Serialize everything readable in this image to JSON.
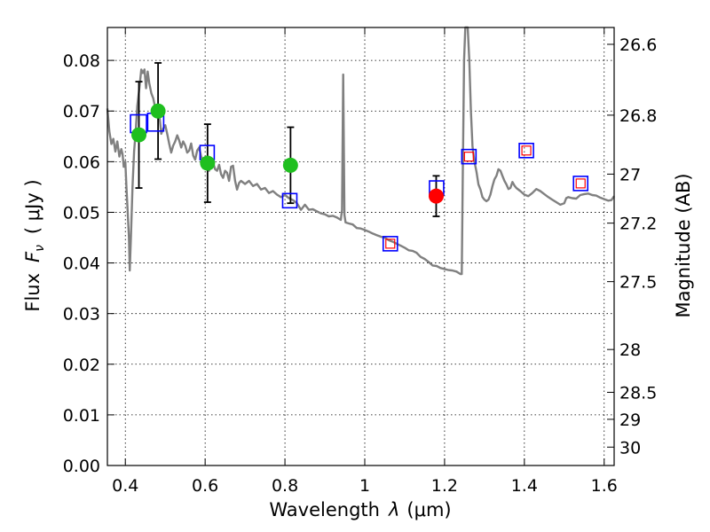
{
  "chart_data": {
    "type": "scatter",
    "xlabel_main": "Wavelength",
    "xlabel_symbol": "λ",
    "xlabel_unit": "(μm)",
    "ylabel_main": "Flux",
    "ylabel_symbol": "F",
    "ylabel_subscript": "ν",
    "ylabel_unit": "( μJy )",
    "y2label": "Magnitude (AB)",
    "xlim": [
      0.355,
      1.625
    ],
    "ylim": [
      0.0,
      0.0865
    ],
    "xticks": [
      0.4,
      0.6,
      0.8,
      1.0,
      1.2,
      1.4,
      1.6
    ],
    "xtick_labels": [
      "0.4",
      "0.6",
      "0.8",
      "1",
      "1.2",
      "1.4",
      "1.6"
    ],
    "yticks": [
      0.0,
      0.01,
      0.02,
      0.03,
      0.04,
      0.05,
      0.06,
      0.07,
      0.08
    ],
    "ytick_labels": [
      "0.00",
      "0.01",
      "0.02",
      "0.03",
      "0.04",
      "0.05",
      "0.06",
      "0.07",
      "0.08"
    ],
    "y2ticks": [
      {
        "mag": 26.6,
        "label": "26.6"
      },
      {
        "mag": 26.8,
        "label": "26.8"
      },
      {
        "mag": 27.0,
        "label": "27"
      },
      {
        "mag": 27.2,
        "label": "27.2"
      },
      {
        "mag": 27.5,
        "label": "27.5"
      },
      {
        "mag": 28.0,
        "label": "28"
      },
      {
        "mag": 28.5,
        "label": "28.5"
      },
      {
        "mag": 29.0,
        "label": "29"
      },
      {
        "mag": 30.0,
        "label": "30"
      }
    ],
    "grid": true,
    "colors": {
      "sed": "#808080",
      "green": "#1fbf1f",
      "red": "#ff0000",
      "model_box": "#0000ff",
      "model_box_inner": "#ff0000",
      "errorbar": "#000000"
    },
    "sed_model": [
      [
        0.355,
        0.0705
      ],
      [
        0.36,
        0.066
      ],
      [
        0.365,
        0.0635
      ],
      [
        0.37,
        0.0645
      ],
      [
        0.375,
        0.062
      ],
      [
        0.38,
        0.064
      ],
      [
        0.385,
        0.061
      ],
      [
        0.39,
        0.0625
      ],
      [
        0.393,
        0.0615
      ],
      [
        0.396,
        0.059
      ],
      [
        0.4,
        0.06
      ],
      [
        0.403,
        0.0545
      ],
      [
        0.406,
        0.05
      ],
      [
        0.409,
        0.045
      ],
      [
        0.411,
        0.0385
      ],
      [
        0.414,
        0.045
      ],
      [
        0.418,
        0.055
      ],
      [
        0.422,
        0.062
      ],
      [
        0.426,
        0.066
      ],
      [
        0.43,
        0.071
      ],
      [
        0.435,
        0.0745
      ],
      [
        0.44,
        0.0782
      ],
      [
        0.444,
        0.0775
      ],
      [
        0.448,
        0.0782
      ],
      [
        0.452,
        0.0745
      ],
      [
        0.456,
        0.0778
      ],
      [
        0.46,
        0.0755
      ],
      [
        0.465,
        0.0735
      ],
      [
        0.47,
        0.0725
      ],
      [
        0.475,
        0.0705
      ],
      [
        0.48,
        0.0712
      ],
      [
        0.485,
        0.0695
      ],
      [
        0.49,
        0.0655
      ],
      [
        0.495,
        0.0665
      ],
      [
        0.5,
        0.0672
      ],
      [
        0.505,
        0.0655
      ],
      [
        0.51,
        0.0635
      ],
      [
        0.515,
        0.0618
      ],
      [
        0.52,
        0.0632
      ],
      [
        0.525,
        0.064
      ],
      [
        0.53,
        0.0652
      ],
      [
        0.535,
        0.0642
      ],
      [
        0.54,
        0.0628
      ],
      [
        0.545,
        0.064
      ],
      [
        0.55,
        0.0632
      ],
      [
        0.555,
        0.0618
      ],
      [
        0.56,
        0.0622
      ],
      [
        0.565,
        0.0636
      ],
      [
        0.57,
        0.0612
      ],
      [
        0.575,
        0.0604
      ],
      [
        0.58,
        0.0622
      ],
      [
        0.585,
        0.0628
      ],
      [
        0.59,
        0.061
      ],
      [
        0.595,
        0.06
      ],
      [
        0.6,
        0.059
      ],
      [
        0.605,
        0.061
      ],
      [
        0.61,
        0.0582
      ],
      [
        0.615,
        0.06
      ],
      [
        0.62,
        0.0598
      ],
      [
        0.625,
        0.0585
      ],
      [
        0.63,
        0.0582
      ],
      [
        0.635,
        0.0594
      ],
      [
        0.64,
        0.0575
      ],
      [
        0.645,
        0.0568
      ],
      [
        0.65,
        0.0582
      ],
      [
        0.655,
        0.0578
      ],
      [
        0.66,
        0.0562
      ],
      [
        0.665,
        0.059
      ],
      [
        0.67,
        0.0592
      ],
      [
        0.675,
        0.0562
      ],
      [
        0.68,
        0.0545
      ],
      [
        0.685,
        0.0558
      ],
      [
        0.69,
        0.0562
      ],
      [
        0.7,
        0.0556
      ],
      [
        0.71,
        0.0562
      ],
      [
        0.72,
        0.0552
      ],
      [
        0.73,
        0.0556
      ],
      [
        0.74,
        0.0545
      ],
      [
        0.75,
        0.0548
      ],
      [
        0.76,
        0.0538
      ],
      [
        0.77,
        0.0542
      ],
      [
        0.78,
        0.0535
      ],
      [
        0.79,
        0.053
      ],
      [
        0.8,
        0.0534
      ],
      [
        0.81,
        0.0528
      ],
      [
        0.82,
        0.0524
      ],
      [
        0.83,
        0.0518
      ],
      [
        0.84,
        0.0505
      ],
      [
        0.85,
        0.0515
      ],
      [
        0.86,
        0.0505
      ],
      [
        0.87,
        0.0506
      ],
      [
        0.88,
        0.0502
      ],
      [
        0.89,
        0.0498
      ],
      [
        0.9,
        0.0496
      ],
      [
        0.91,
        0.0492
      ],
      [
        0.92,
        0.0493
      ],
      [
        0.93,
        0.049
      ],
      [
        0.94,
        0.0485
      ],
      [
        0.943,
        0.0505
      ],
      [
        0.946,
        0.0772
      ],
      [
        0.949,
        0.0495
      ],
      [
        0.952,
        0.048
      ],
      [
        0.96,
        0.0478
      ],
      [
        0.97,
        0.0476
      ],
      [
        0.98,
        0.0469
      ],
      [
        0.99,
        0.0468
      ],
      [
        1.0,
        0.0465
      ],
      [
        1.01,
        0.0462
      ],
      [
        1.02,
        0.0458
      ],
      [
        1.03,
        0.0455
      ],
      [
        1.04,
        0.0452
      ],
      [
        1.05,
        0.045
      ],
      [
        1.06,
        0.0445
      ],
      [
        1.07,
        0.0442
      ],
      [
        1.08,
        0.0438
      ],
      [
        1.09,
        0.0434
      ],
      [
        1.1,
        0.043
      ],
      [
        1.11,
        0.0425
      ],
      [
        1.12,
        0.0424
      ],
      [
        1.13,
        0.042
      ],
      [
        1.14,
        0.0412
      ],
      [
        1.15,
        0.0408
      ],
      [
        1.16,
        0.0402
      ],
      [
        1.17,
        0.0395
      ],
      [
        1.18,
        0.0394
      ],
      [
        1.19,
        0.039
      ],
      [
        1.2,
        0.0388
      ],
      [
        1.21,
        0.0386
      ],
      [
        1.22,
        0.0385
      ],
      [
        1.23,
        0.0383
      ],
      [
        1.24,
        0.0378
      ],
      [
        1.243,
        0.0378
      ],
      [
        1.246,
        0.06
      ],
      [
        1.249,
        0.08
      ],
      [
        1.252,
        0.0865
      ],
      [
        1.258,
        0.0865
      ],
      [
        1.262,
        0.08
      ],
      [
        1.266,
        0.07
      ],
      [
        1.27,
        0.063
      ],
      [
        1.275,
        0.06
      ],
      [
        1.28,
        0.058
      ],
      [
        1.285,
        0.0555
      ],
      [
        1.29,
        0.0545
      ],
      [
        1.295,
        0.053
      ],
      [
        1.3,
        0.0525
      ],
      [
        1.305,
        0.0522
      ],
      [
        1.31,
        0.0525
      ],
      [
        1.315,
        0.0535
      ],
      [
        1.32,
        0.0552
      ],
      [
        1.325,
        0.0565
      ],
      [
        1.33,
        0.0572
      ],
      [
        1.335,
        0.0585
      ],
      [
        1.34,
        0.0582
      ],
      [
        1.345,
        0.0572
      ],
      [
        1.35,
        0.0562
      ],
      [
        1.355,
        0.0555
      ],
      [
        1.36,
        0.0546
      ],
      [
        1.365,
        0.0548
      ],
      [
        1.37,
        0.056
      ],
      [
        1.375,
        0.0553
      ],
      [
        1.38,
        0.0548
      ],
      [
        1.39,
        0.0542
      ],
      [
        1.4,
        0.0535
      ],
      [
        1.41,
        0.0532
      ],
      [
        1.42,
        0.0538
      ],
      [
        1.43,
        0.0546
      ],
      [
        1.44,
        0.0542
      ],
      [
        1.45,
        0.0536
      ],
      [
        1.46,
        0.053
      ],
      [
        1.47,
        0.0525
      ],
      [
        1.48,
        0.052
      ],
      [
        1.49,
        0.0515
      ],
      [
        1.5,
        0.0518
      ],
      [
        1.505,
        0.0528
      ],
      [
        1.51,
        0.053
      ],
      [
        1.52,
        0.0528
      ],
      [
        1.53,
        0.0527
      ],
      [
        1.54,
        0.0534
      ],
      [
        1.55,
        0.0536
      ],
      [
        1.56,
        0.0537
      ],
      [
        1.57,
        0.0534
      ],
      [
        1.58,
        0.0533
      ],
      [
        1.59,
        0.0529
      ],
      [
        1.6,
        0.0526
      ],
      [
        1.61,
        0.0523
      ],
      [
        1.618,
        0.0524
      ],
      [
        1.625,
        0.0532
      ]
    ],
    "observed_green": [
      {
        "x": 0.434,
        "y": 0.0653,
        "err": 0.0105
      },
      {
        "x": 0.482,
        "y": 0.07,
        "err": 0.0095
      },
      {
        "x": 0.606,
        "y": 0.0597,
        "err": 0.0077
      },
      {
        "x": 0.814,
        "y": 0.0593,
        "err": 0.0075
      }
    ],
    "observed_red": [
      {
        "x": 1.179,
        "y": 0.0532,
        "err": 0.004
      }
    ],
    "model_photometry": [
      {
        "x": 0.433,
        "y": 0.0675,
        "big": true,
        "inner": false
      },
      {
        "x": 0.476,
        "y": 0.0678,
        "big": true,
        "inner": false
      },
      {
        "x": 0.605,
        "y": 0.0618,
        "big": false,
        "inner": false
      },
      {
        "x": 0.812,
        "y": 0.0523,
        "big": false,
        "inner": false
      },
      {
        "x": 1.064,
        "y": 0.0438,
        "big": false,
        "inner": true
      },
      {
        "x": 1.18,
        "y": 0.0548,
        "big": false,
        "inner": false
      },
      {
        "x": 1.261,
        "y": 0.061,
        "big": false,
        "inner": true
      },
      {
        "x": 1.405,
        "y": 0.0622,
        "big": false,
        "inner": true
      },
      {
        "x": 1.541,
        "y": 0.0557,
        "big": false,
        "inner": true
      }
    ]
  }
}
